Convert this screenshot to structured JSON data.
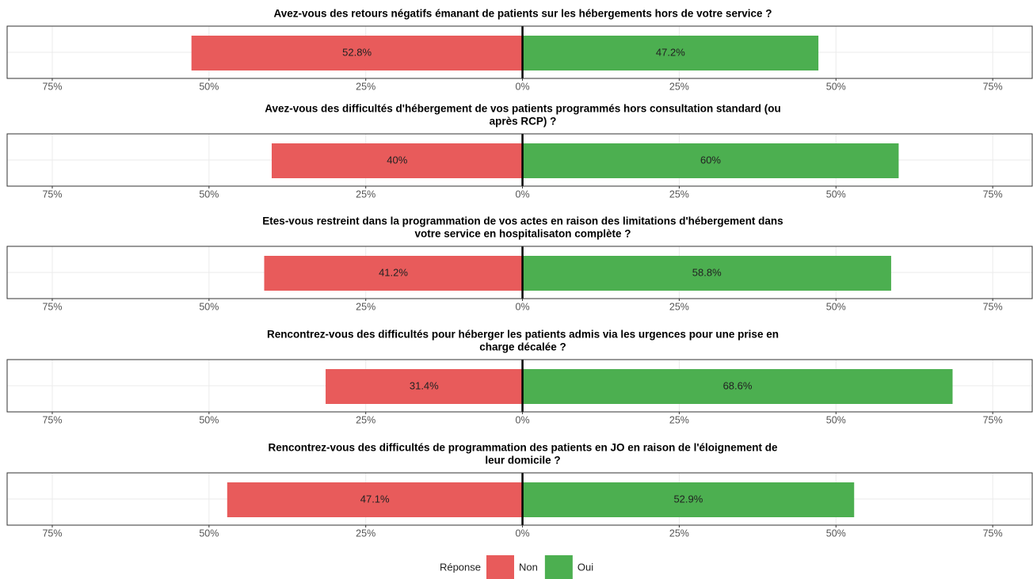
{
  "chart_data": [
    {
      "type": "bar",
      "orientation": "horizontal",
      "title": [
        "Avez-vous des retours négatifs émanant de patients sur les hébergements hors de votre service ?"
      ],
      "categories": [
        null
      ],
      "xlim": [
        -82.2,
        81.3
      ],
      "xticks": [
        {
          "value": -75,
          "label": "75%"
        },
        {
          "value": -50,
          "label": "50%"
        },
        {
          "value": -25,
          "label": "25%"
        },
        {
          "value": 0,
          "label": "0%"
        },
        {
          "value": 25,
          "label": "25%"
        },
        {
          "value": 50,
          "label": "50%"
        },
        {
          "value": 75,
          "label": "75%"
        }
      ],
      "grid": true,
      "legend_title": "Réponse",
      "legend": "bottom",
      "series": [
        {
          "name": "Non",
          "color": "#e85b5b",
          "values": [
            -52.8
          ],
          "value_labels": [
            "52.8%"
          ]
        },
        {
          "name": "Oui",
          "color": "#4caf50",
          "values": [
            47.2
          ],
          "value_labels": [
            "47.2%"
          ]
        }
      ]
    },
    {
      "type": "bar",
      "orientation": "horizontal",
      "title": [
        "Avez-vous des difficultés d'hébergement de vos patients programmés hors consultation standard (ou",
        "après RCP) ?"
      ],
      "categories": [
        null
      ],
      "xlim": [
        -82.2,
        81.3
      ],
      "xticks": [
        {
          "value": -75,
          "label": "75%"
        },
        {
          "value": -50,
          "label": "50%"
        },
        {
          "value": -25,
          "label": "25%"
        },
        {
          "value": 0,
          "label": "0%"
        },
        {
          "value": 25,
          "label": "25%"
        },
        {
          "value": 50,
          "label": "50%"
        },
        {
          "value": 75,
          "label": "75%"
        }
      ],
      "grid": true,
      "series": [
        {
          "name": "Non",
          "color": "#e85b5b",
          "values": [
            -40
          ],
          "value_labels": [
            "40%"
          ]
        },
        {
          "name": "Oui",
          "color": "#4caf50",
          "values": [
            60
          ],
          "value_labels": [
            "60%"
          ]
        }
      ]
    },
    {
      "type": "bar",
      "orientation": "horizontal",
      "title": [
        "Etes-vous restreint dans la programmation de vos actes en raison des limitations d'hébergement dans",
        "votre service en hospitalisaton complète ?"
      ],
      "categories": [
        null
      ],
      "xlim": [
        -82.2,
        81.3
      ],
      "xticks": [
        {
          "value": -75,
          "label": "75%"
        },
        {
          "value": -50,
          "label": "50%"
        },
        {
          "value": -25,
          "label": "25%"
        },
        {
          "value": 0,
          "label": "0%"
        },
        {
          "value": 25,
          "label": "25%"
        },
        {
          "value": 50,
          "label": "50%"
        },
        {
          "value": 75,
          "label": "75%"
        }
      ],
      "grid": true,
      "series": [
        {
          "name": "Non",
          "color": "#e85b5b",
          "values": [
            -41.2
          ],
          "value_labels": [
            "41.2%"
          ]
        },
        {
          "name": "Oui",
          "color": "#4caf50",
          "values": [
            58.8
          ],
          "value_labels": [
            "58.8%"
          ]
        }
      ]
    },
    {
      "type": "bar",
      "orientation": "horizontal",
      "title": [
        "Rencontrez-vous des difficultés pour héberger les patients admis via les urgences pour une prise en",
        "charge décalée ?"
      ],
      "categories": [
        null
      ],
      "xlim": [
        -82.2,
        81.3
      ],
      "xticks": [
        {
          "value": -75,
          "label": "75%"
        },
        {
          "value": -50,
          "label": "50%"
        },
        {
          "value": -25,
          "label": "25%"
        },
        {
          "value": 0,
          "label": "0%"
        },
        {
          "value": 25,
          "label": "25%"
        },
        {
          "value": 50,
          "label": "50%"
        },
        {
          "value": 75,
          "label": "75%"
        }
      ],
      "grid": true,
      "series": [
        {
          "name": "Non",
          "color": "#e85b5b",
          "values": [
            -31.4
          ],
          "value_labels": [
            "31.4%"
          ]
        },
        {
          "name": "Oui",
          "color": "#4caf50",
          "values": [
            68.6
          ],
          "value_labels": [
            "68.6%"
          ]
        }
      ]
    },
    {
      "type": "bar",
      "orientation": "horizontal",
      "title": [
        "Rencontrez-vous des difficultés de programmation des patients en JO en raison de l'éloignement de",
        "leur domicile ?"
      ],
      "categories": [
        null
      ],
      "xlim": [
        -82.2,
        81.3
      ],
      "xticks": [
        {
          "value": -75,
          "label": "75%"
        },
        {
          "value": -50,
          "label": "50%"
        },
        {
          "value": -25,
          "label": "25%"
        },
        {
          "value": 0,
          "label": "0%"
        },
        {
          "value": 25,
          "label": "25%"
        },
        {
          "value": 50,
          "label": "50%"
        },
        {
          "value": 75,
          "label": "75%"
        }
      ],
      "grid": true,
      "series": [
        {
          "name": "Non",
          "color": "#e85b5b",
          "values": [
            -47.1
          ],
          "value_labels": [
            "47.1%"
          ]
        },
        {
          "name": "Oui",
          "color": "#4caf50",
          "values": [
            52.9
          ],
          "value_labels": [
            "52.9%"
          ]
        }
      ]
    }
  ]
}
